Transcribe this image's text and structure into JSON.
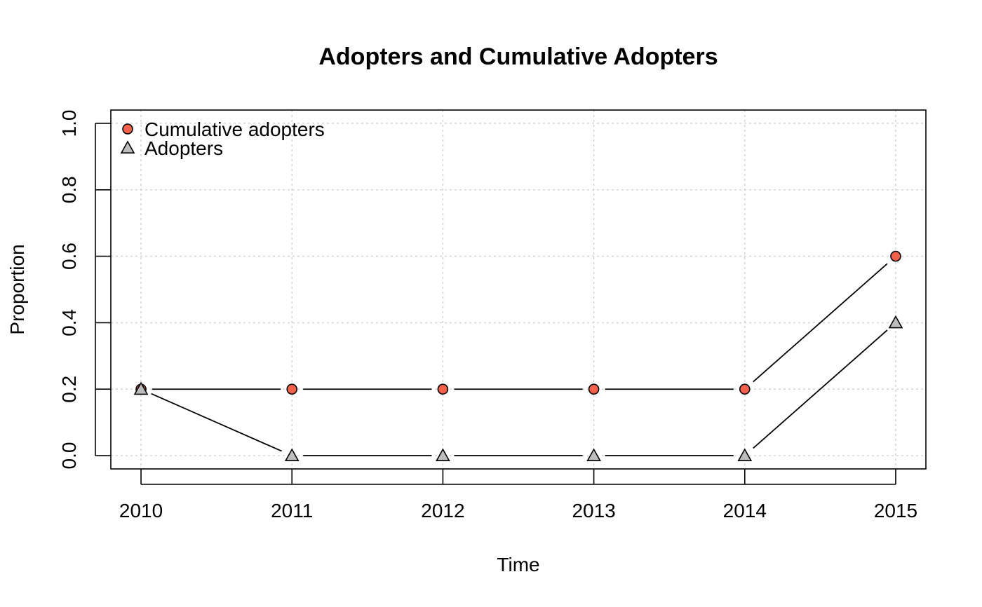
{
  "chart_data": {
    "type": "line",
    "title": "Adopters and Cumulative Adopters",
    "xlabel": "Time",
    "ylabel": "Proportion",
    "categories": [
      "2010",
      "2011",
      "2012",
      "2013",
      "2014",
      "2015"
    ],
    "x": [
      2010,
      2011,
      2012,
      2013,
      2014,
      2015
    ],
    "xlim": [
      2009.8,
      2015.2
    ],
    "ylim": [
      -0.04,
      1.04
    ],
    "yticks": [
      0.0,
      0.2,
      0.4,
      0.6,
      0.8,
      1.0
    ],
    "ytick_labels": [
      "0.0",
      "0.2",
      "0.4",
      "0.6",
      "0.8",
      "1.0"
    ],
    "grid": true,
    "legend": {
      "position": "top-left"
    },
    "series": [
      {
        "name": "Cumulative adopters",
        "marker": "circle",
        "color": "#F4614A",
        "values": [
          0.2,
          0.2,
          0.2,
          0.2,
          0.2,
          0.6
        ]
      },
      {
        "name": "Adopters",
        "marker": "triangle",
        "color": "#BDBDBD",
        "values": [
          0.2,
          0.0,
          0.0,
          0.0,
          0.0,
          0.4
        ]
      }
    ]
  }
}
